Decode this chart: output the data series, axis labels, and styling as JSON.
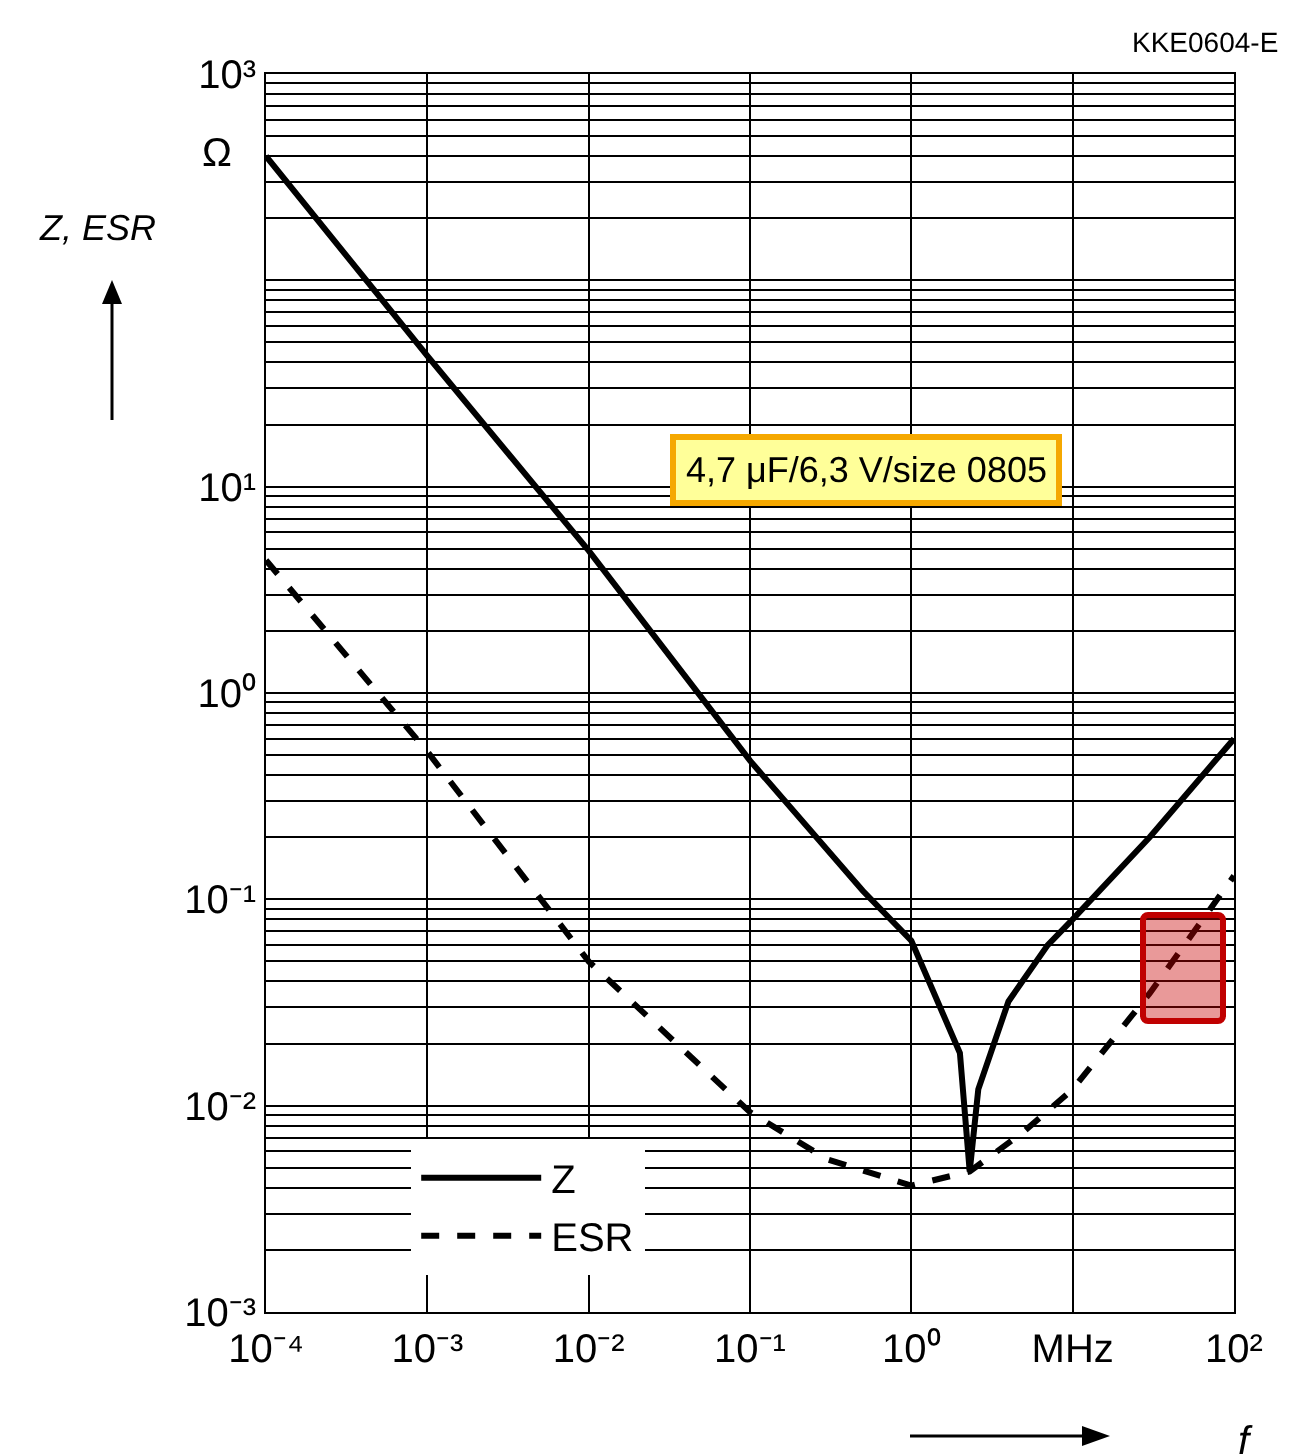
{
  "chart_data": {
    "type": "line",
    "xlabel": "f",
    "ylabel": "Z, ESR",
    "log": "xy",
    "grid": true,
    "legend": "bottom left",
    "xlim": [
      0.0001,
      100
    ],
    "ylim": [
      0.001,
      1000
    ],
    "xticks": [
      {
        "value": 0.0001,
        "label": "10⁻⁴"
      },
      {
        "value": 0.001,
        "label": "10⁻³"
      },
      {
        "value": 0.01,
        "label": "10⁻²"
      },
      {
        "value": 0.1,
        "label": "10⁻¹"
      },
      {
        "value": 1,
        "label": "10⁰"
      },
      {
        "value": 10,
        "label": "MHz"
      },
      {
        "value": 100,
        "label": "10²"
      }
    ],
    "yticks": [
      {
        "value": 0.001,
        "label": "10⁻³"
      },
      {
        "value": 0.01,
        "label": "10⁻²"
      },
      {
        "value": 0.1,
        "label": "10⁻¹"
      },
      {
        "value": 1,
        "label": "10⁰"
      },
      {
        "value": 10,
        "label": "10¹"
      },
      {
        "value": 100,
        "label": null
      },
      {
        "value": 1000,
        "label": "10³"
      }
    ],
    "annotations": [
      "KKE0604-E",
      "Ω",
      "4,7 μF/6,3 V/size 0805"
    ],
    "series": [
      {
        "name": "Z",
        "color": "#000000",
        "line_style": "solid",
        "x": [
          0.0001,
          0.001,
          0.01,
          0.1,
          0.5,
          1,
          2,
          2.3,
          2.6,
          4,
          7,
          10,
          30,
          100
        ],
        "values": [
          400,
          43,
          4.9,
          0.47,
          0.11,
          0.063,
          0.018,
          0.0048,
          0.012,
          0.032,
          0.06,
          0.08,
          0.2,
          0.6
        ]
      },
      {
        "name": "ESR",
        "color": "#000000",
        "line_style": "dashed",
        "x": [
          0.0001,
          0.001,
          0.01,
          0.1,
          0.3,
          1,
          2.3,
          5,
          10,
          30,
          100
        ],
        "values": [
          4.4,
          0.52,
          0.05,
          0.0093,
          0.0055,
          0.0041,
          0.0048,
          0.0075,
          0.012,
          0.035,
          0.13
        ]
      }
    ]
  }
}
